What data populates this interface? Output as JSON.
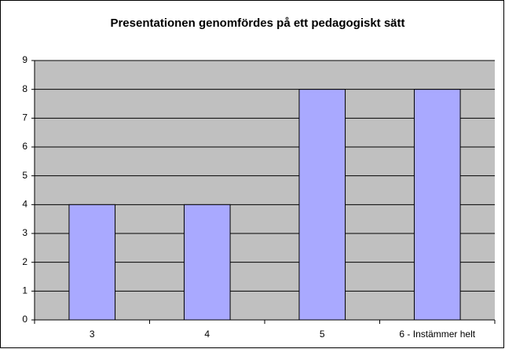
{
  "chart_data": {
    "type": "bar",
    "title": "Presentationen genomfördes på ett pedagogiskt sätt",
    "categories": [
      "3",
      "4",
      "5",
      "6 - Instämmer helt"
    ],
    "values": [
      4,
      4,
      8,
      8
    ],
    "color": "#a9a9ff",
    "ylim": [
      0,
      9
    ],
    "yticks": [
      0,
      1,
      2,
      3,
      4,
      5,
      6,
      7,
      8,
      9
    ],
    "grid": true
  }
}
